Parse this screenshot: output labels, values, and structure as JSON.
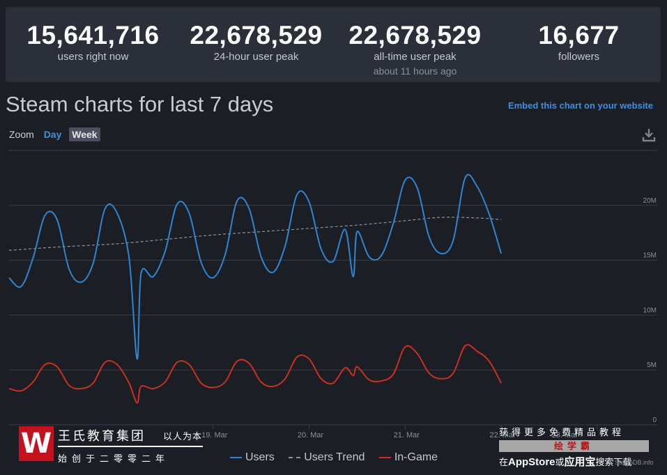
{
  "stats": [
    {
      "value": "15,641,716",
      "label": "users right now",
      "sub": ""
    },
    {
      "value": "22,678,529",
      "label": "24-hour user peak",
      "sub": ""
    },
    {
      "value": "22,678,529",
      "label": "all-time user peak",
      "sub": "about 11 hours ago"
    },
    {
      "value": "16,677",
      "label": "followers",
      "sub": ""
    }
  ],
  "page_title": "Steam charts for last 7 days",
  "embed_link": "Embed this chart on your website",
  "zoom": {
    "label": "Zoom",
    "day": "Day",
    "week": "Week"
  },
  "icons": {
    "download": "download-icon"
  },
  "colors": {
    "users": "#2f86d2",
    "trend": "#8f939b",
    "ingame": "#c9301f",
    "grid": "#3a3f4a",
    "axis_text": "#8a909b"
  },
  "chart_data": {
    "type": "line",
    "x_tick_labels": [
      "19. Mar",
      "20. Mar",
      "21. Mar",
      "22. Mar",
      "23. Mar"
    ],
    "y_tick_labels": [
      "0",
      "5M",
      "10M",
      "15M",
      "20M"
    ],
    "ylim": [
      0,
      25000000
    ],
    "grid": true,
    "legend_position": "bottom",
    "xlim": [
      "2023-03-16T21:00",
      "2023-03-23T15:00"
    ],
    "series": [
      {
        "name": "Users",
        "points": [
          [
            "2023-03-16T21:00",
            13400000
          ],
          [
            "2023-03-17T00:00",
            12600000
          ],
          [
            "2023-03-17T03:00",
            15200000
          ],
          [
            "2023-03-17T06:00",
            19100000
          ],
          [
            "2023-03-17T09:00",
            18700000
          ],
          [
            "2023-03-17T12:00",
            14200000
          ],
          [
            "2023-03-17T15:00",
            13000000
          ],
          [
            "2023-03-17T18:00",
            14700000
          ],
          [
            "2023-03-17T21:00",
            19700000
          ],
          [
            "2023-03-18T00:00",
            19300000
          ],
          [
            "2023-03-18T03:00",
            15200000
          ],
          [
            "2023-03-18T05:00",
            6000000
          ],
          [
            "2023-03-18T06:00",
            13800000
          ],
          [
            "2023-03-18T09:00",
            13500000
          ],
          [
            "2023-03-18T12:00",
            15800000
          ],
          [
            "2023-03-18T15:00",
            20100000
          ],
          [
            "2023-03-18T18:00",
            19300000
          ],
          [
            "2023-03-18T21:00",
            14800000
          ],
          [
            "2023-03-19T00:00",
            13400000
          ],
          [
            "2023-03-19T03:00",
            15500000
          ],
          [
            "2023-03-19T06:00",
            20400000
          ],
          [
            "2023-03-19T09:00",
            19700000
          ],
          [
            "2023-03-19T12:00",
            15300000
          ],
          [
            "2023-03-19T15:00",
            13900000
          ],
          [
            "2023-03-19T18:00",
            16300000
          ],
          [
            "2023-03-19T21:00",
            21000000
          ],
          [
            "2023-03-20T00:00",
            20300000
          ],
          [
            "2023-03-20T03:00",
            16000000
          ],
          [
            "2023-03-20T06:00",
            14900000
          ],
          [
            "2023-03-20T09:00",
            17800000
          ],
          [
            "2023-03-20T11:00",
            13500000
          ],
          [
            "2023-03-20T12:00",
            17600000
          ],
          [
            "2023-03-20T15:00",
            15300000
          ],
          [
            "2023-03-20T18:00",
            15400000
          ],
          [
            "2023-03-20T21:00",
            18300000
          ],
          [
            "2023-03-21T00:00",
            22300000
          ],
          [
            "2023-03-21T03:00",
            21600000
          ],
          [
            "2023-03-21T06:00",
            17100000
          ],
          [
            "2023-03-21T09:00",
            15600000
          ],
          [
            "2023-03-21T12:00",
            16800000
          ],
          [
            "2023-03-21T15:00",
            22500000
          ],
          [
            "2023-03-21T18:00",
            21700000
          ],
          [
            "2023-03-21T21:00",
            19200000
          ],
          [
            "2023-03-22T00:00",
            15600000
          ]
        ]
      },
      {
        "name": "Users Trend",
        "points": [
          [
            "2023-03-16T21:00",
            15900000
          ],
          [
            "2023-03-17T09:00",
            16200000
          ],
          [
            "2023-03-18T00:00",
            16500000
          ],
          [
            "2023-03-18T12:00",
            16900000
          ],
          [
            "2023-03-19T00:00",
            17300000
          ],
          [
            "2023-03-19T12:00",
            17600000
          ],
          [
            "2023-03-20T00:00",
            17900000
          ],
          [
            "2023-03-20T12:00",
            18200000
          ],
          [
            "2023-03-21T00:00",
            18600000
          ],
          [
            "2023-03-21T09:00",
            18900000
          ],
          [
            "2023-03-21T18:00",
            18850000
          ],
          [
            "2023-03-22T00:00",
            18700000
          ]
        ]
      },
      {
        "name": "In-Game",
        "points": [
          [
            "2023-03-16T21:00",
            3300000
          ],
          [
            "2023-03-17T00:00",
            3100000
          ],
          [
            "2023-03-17T03:00",
            3900000
          ],
          [
            "2023-03-17T06:00",
            5500000
          ],
          [
            "2023-03-17T09:00",
            5300000
          ],
          [
            "2023-03-17T12:00",
            3600000
          ],
          [
            "2023-03-17T15:00",
            3300000
          ],
          [
            "2023-03-17T18:00",
            3800000
          ],
          [
            "2023-03-17T21:00",
            5700000
          ],
          [
            "2023-03-18T00:00",
            5500000
          ],
          [
            "2023-03-18T03:00",
            3800000
          ],
          [
            "2023-03-18T05:00",
            2000000
          ],
          [
            "2023-03-18T06:00",
            3500000
          ],
          [
            "2023-03-18T09:00",
            3300000
          ],
          [
            "2023-03-18T12:00",
            3900000
          ],
          [
            "2023-03-18T15:00",
            5700000
          ],
          [
            "2023-03-18T18:00",
            5500000
          ],
          [
            "2023-03-18T21:00",
            3800000
          ],
          [
            "2023-03-19T00:00",
            3400000
          ],
          [
            "2023-03-19T03:00",
            3900000
          ],
          [
            "2023-03-19T06:00",
            5800000
          ],
          [
            "2023-03-19T09:00",
            5600000
          ],
          [
            "2023-03-19T12:00",
            3900000
          ],
          [
            "2023-03-19T15:00",
            3500000
          ],
          [
            "2023-03-19T18:00",
            4200000
          ],
          [
            "2023-03-19T21:00",
            6200000
          ],
          [
            "2023-03-20T00:00",
            6000000
          ],
          [
            "2023-03-20T03:00",
            4200000
          ],
          [
            "2023-03-20T06:00",
            3800000
          ],
          [
            "2023-03-20T09:00",
            5200000
          ],
          [
            "2023-03-20T11:00",
            4500000
          ],
          [
            "2023-03-20T12:00",
            5300000
          ],
          [
            "2023-03-20T15:00",
            4100000
          ],
          [
            "2023-03-20T18:00",
            4000000
          ],
          [
            "2023-03-20T21:00",
            4600000
          ],
          [
            "2023-03-21T00:00",
            7100000
          ],
          [
            "2023-03-21T03:00",
            6500000
          ],
          [
            "2023-03-21T06:00",
            4700000
          ],
          [
            "2023-03-21T09:00",
            4200000
          ],
          [
            "2023-03-21T12:00",
            4700000
          ],
          [
            "2023-03-21T15:00",
            7200000
          ],
          [
            "2023-03-21T18:00",
            6700000
          ],
          [
            "2023-03-21T21:00",
            5800000
          ],
          [
            "2023-03-22T00:00",
            3800000
          ]
        ]
      }
    ]
  },
  "watermark": {
    "logo": "W",
    "name": "王氏教育集团",
    "slogan": "以人为本",
    "since": "始创于二零零二年",
    "promo1": "获得更多免费精品教程",
    "promo2": "绘学霸",
    "promo3_a": "在",
    "promo3_b": "AppStore",
    "promo3_c": "或",
    "promo3_d": "应用宝",
    "promo3_e": "搜索下载"
  },
  "credit": "SteamDB.info"
}
